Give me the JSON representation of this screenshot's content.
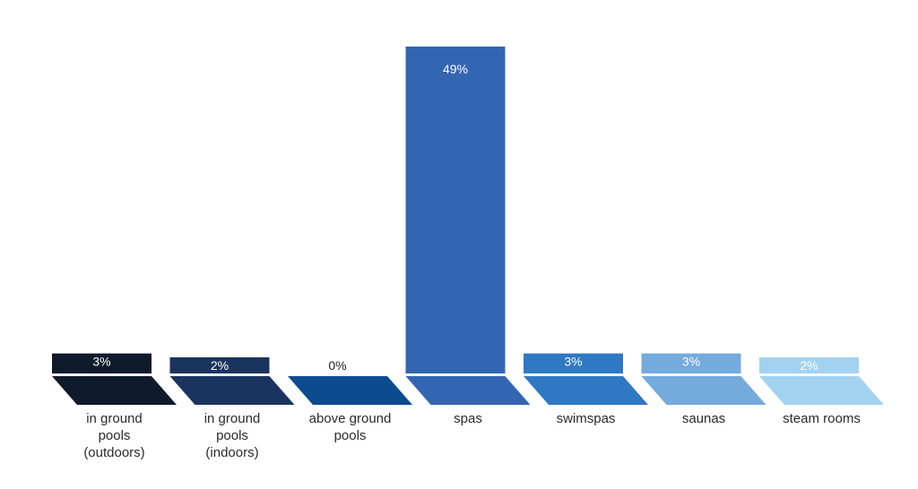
{
  "chart_data": {
    "type": "bar",
    "title": "",
    "xlabel": "",
    "ylabel": "",
    "ylim": [
      0,
      49
    ],
    "grid": false,
    "legend": "none",
    "categories": [
      [
        "in ground",
        "pools",
        "(outdoors)"
      ],
      [
        "in ground",
        "pools",
        "(indoors)"
      ],
      [
        "above ground",
        "pools"
      ],
      [
        "spas"
      ],
      [
        "swimspas"
      ],
      [
        "saunas"
      ],
      [
        "steam rooms"
      ]
    ],
    "values": [
      3,
      2,
      0,
      49,
      3,
      3,
      2
    ],
    "value_labels": [
      "3%",
      "2%",
      "0%",
      "49%",
      "3%",
      "3%",
      "2%"
    ],
    "colors": [
      "#0f1a2c",
      "#1b335f",
      "#0b4b8f",
      "#3366b2",
      "#2f78c3",
      "#74aadc",
      "#a3d2f1"
    ],
    "label_colors": [
      "#ffffff",
      "#ffffff",
      "#222222",
      "#ffffff",
      "#ffffff",
      "#ffffff",
      "#ffffff"
    ]
  }
}
